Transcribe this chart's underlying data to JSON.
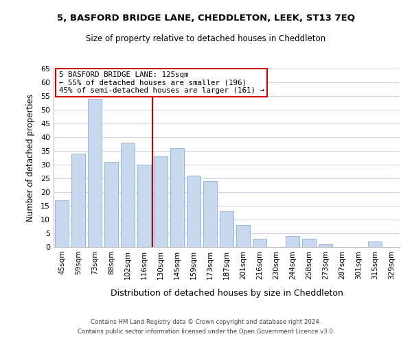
{
  "title": "5, BASFORD BRIDGE LANE, CHEDDLETON, LEEK, ST13 7EQ",
  "subtitle": "Size of property relative to detached houses in Cheddleton",
  "xlabel": "Distribution of detached houses by size in Cheddleton",
  "ylabel": "Number of detached properties",
  "categories": [
    "45sqm",
    "59sqm",
    "73sqm",
    "88sqm",
    "102sqm",
    "116sqm",
    "130sqm",
    "145sqm",
    "159sqm",
    "173sqm",
    "187sqm",
    "201sqm",
    "216sqm",
    "230sqm",
    "244sqm",
    "258sqm",
    "273sqm",
    "287sqm",
    "301sqm",
    "315sqm",
    "329sqm"
  ],
  "values": [
    17,
    34,
    54,
    31,
    38,
    30,
    33,
    36,
    26,
    24,
    13,
    8,
    3,
    0,
    4,
    3,
    1,
    0,
    0,
    2,
    0
  ],
  "bar_color": "#c8d9ee",
  "bar_edge_color": "#9ab5d5",
  "vline_x_index": 6,
  "vline_color": "#cc0000",
  "annotation_text": "5 BASFORD BRIDGE LANE: 125sqm\n← 55% of detached houses are smaller (196)\n45% of semi-detached houses are larger (161) →",
  "annotation_box_color": "#ffffff",
  "annotation_box_edge": "#cc0000",
  "ylim": [
    0,
    65
  ],
  "yticks": [
    0,
    5,
    10,
    15,
    20,
    25,
    30,
    35,
    40,
    45,
    50,
    55,
    60,
    65
  ],
  "footer_line1": "Contains HM Land Registry data © Crown copyright and database right 2024.",
  "footer_line2": "Contains public sector information licensed under the Open Government Licence v3.0.",
  "bg_color": "#ffffff",
  "grid_color": "#ccd5e3"
}
